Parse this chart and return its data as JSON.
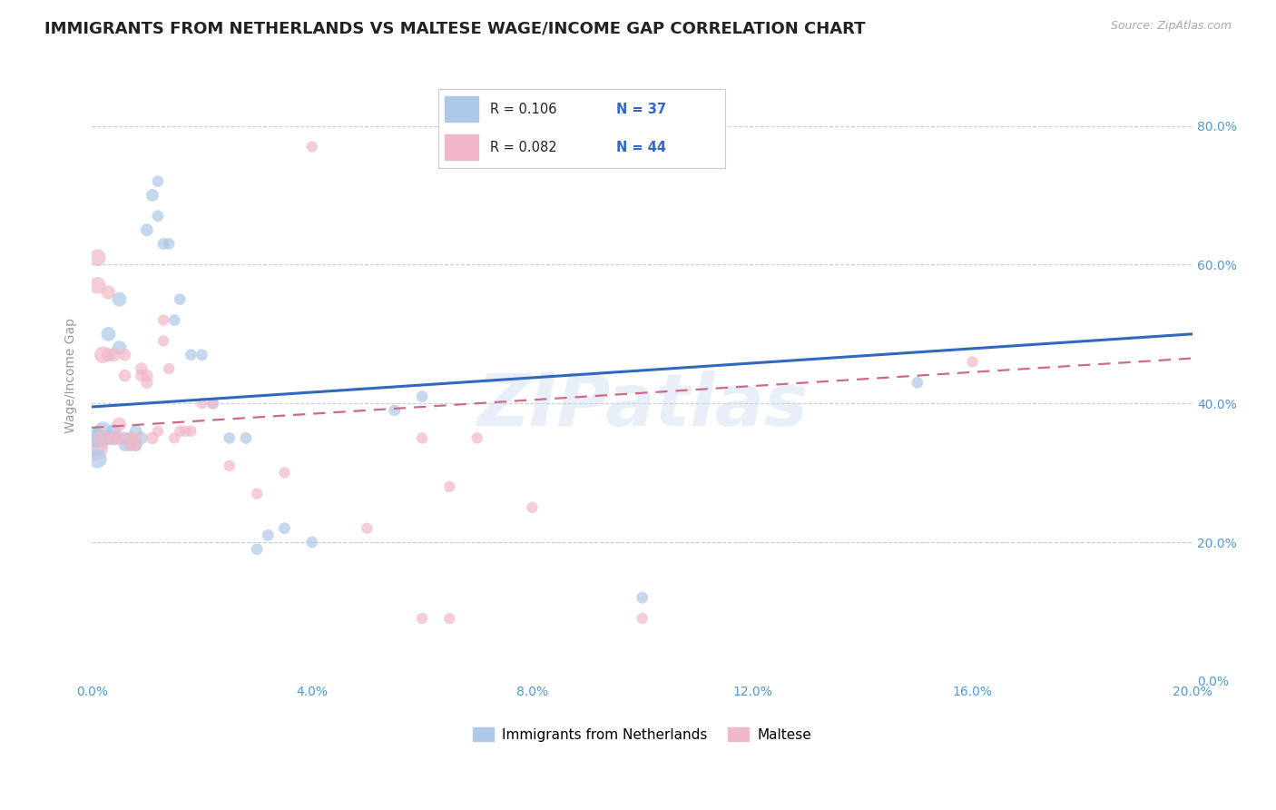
{
  "title": "IMMIGRANTS FROM NETHERLANDS VS MALTESE WAGE/INCOME GAP CORRELATION CHART",
  "source": "Source: ZipAtlas.com",
  "ylabel": "Wage/Income Gap",
  "watermark": "ZIPatlas",
  "legend_blue_label": "Immigrants from Netherlands",
  "legend_pink_label": "Maltese",
  "legend_blue_R": "R = 0.106",
  "legend_blue_N": "N = 37",
  "legend_pink_R": "R = 0.082",
  "legend_pink_N": "N = 44",
  "blue_color": "#adc8e8",
  "pink_color": "#f0b8c8",
  "line_blue_color": "#3068c0",
  "line_pink_color": "#d06888",
  "xmin": 0.0,
  "xmax": 0.2,
  "ymin": 0.0,
  "ymax": 0.88,
  "xticks": [
    0.0,
    0.04,
    0.08,
    0.12,
    0.16,
    0.2
  ],
  "yticks": [
    0.0,
    0.2,
    0.4,
    0.6,
    0.8
  ],
  "blue_x": [
    0.001,
    0.001,
    0.002,
    0.003,
    0.003,
    0.004,
    0.004,
    0.005,
    0.005,
    0.006,
    0.006,
    0.007,
    0.007,
    0.008,
    0.008,
    0.009,
    0.01,
    0.011,
    0.012,
    0.012,
    0.013,
    0.014,
    0.015,
    0.016,
    0.018,
    0.02,
    0.022,
    0.025,
    0.028,
    0.03,
    0.032,
    0.035,
    0.04,
    0.055,
    0.06,
    0.1,
    0.15
  ],
  "blue_y": [
    0.35,
    0.32,
    0.36,
    0.5,
    0.35,
    0.36,
    0.35,
    0.48,
    0.55,
    0.35,
    0.34,
    0.35,
    0.34,
    0.34,
    0.36,
    0.35,
    0.65,
    0.7,
    0.72,
    0.67,
    0.63,
    0.63,
    0.52,
    0.55,
    0.47,
    0.47,
    0.4,
    0.35,
    0.35,
    0.19,
    0.21,
    0.22,
    0.2,
    0.39,
    0.41,
    0.12,
    0.43
  ],
  "blue_sizes": [
    120,
    100,
    100,
    100,
    100,
    100,
    100,
    100,
    100,
    100,
    100,
    100,
    100,
    100,
    100,
    100,
    100,
    100,
    100,
    100,
    100,
    100,
    100,
    100,
    100,
    100,
    100,
    100,
    100,
    100,
    100,
    100,
    100,
    100,
    100,
    100,
    100
  ],
  "pink_x": [
    0.001,
    0.001,
    0.002,
    0.002,
    0.003,
    0.003,
    0.004,
    0.004,
    0.005,
    0.005,
    0.006,
    0.006,
    0.007,
    0.007,
    0.008,
    0.008,
    0.009,
    0.009,
    0.01,
    0.01,
    0.011,
    0.012,
    0.013,
    0.013,
    0.014,
    0.015,
    0.016,
    0.017,
    0.018,
    0.02,
    0.022,
    0.025,
    0.03,
    0.035,
    0.04,
    0.05,
    0.06,
    0.065,
    0.07,
    0.08,
    0.1,
    0.06,
    0.065,
    0.16
  ],
  "pink_y": [
    0.61,
    0.57,
    0.35,
    0.47,
    0.47,
    0.56,
    0.35,
    0.47,
    0.35,
    0.37,
    0.47,
    0.44,
    0.35,
    0.34,
    0.35,
    0.34,
    0.44,
    0.45,
    0.44,
    0.43,
    0.35,
    0.36,
    0.52,
    0.49,
    0.45,
    0.35,
    0.36,
    0.36,
    0.36,
    0.4,
    0.4,
    0.31,
    0.27,
    0.3,
    0.77,
    0.22,
    0.35,
    0.28,
    0.35,
    0.25,
    0.09,
    0.09,
    0.09,
    0.46
  ],
  "pink_sizes": [
    100,
    100,
    100,
    100,
    100,
    100,
    100,
    100,
    100,
    100,
    100,
    100,
    100,
    100,
    100,
    100,
    100,
    100,
    100,
    100,
    100,
    100,
    100,
    100,
    100,
    100,
    100,
    100,
    100,
    100,
    100,
    100,
    100,
    100,
    100,
    100,
    100,
    100,
    100,
    100,
    100,
    100,
    100,
    100
  ],
  "blue_line_x0": 0.0,
  "blue_line_y0": 0.395,
  "blue_line_x1": 0.2,
  "blue_line_y1": 0.5,
  "pink_line_x0": 0.0,
  "pink_line_y0": 0.365,
  "pink_line_x1": 0.2,
  "pink_line_y1": 0.465,
  "background_color": "#ffffff",
  "grid_color": "#cccccc",
  "title_fontsize": 13,
  "axis_fontsize": 10,
  "tick_fontsize": 10,
  "tick_color": "#5599cc"
}
